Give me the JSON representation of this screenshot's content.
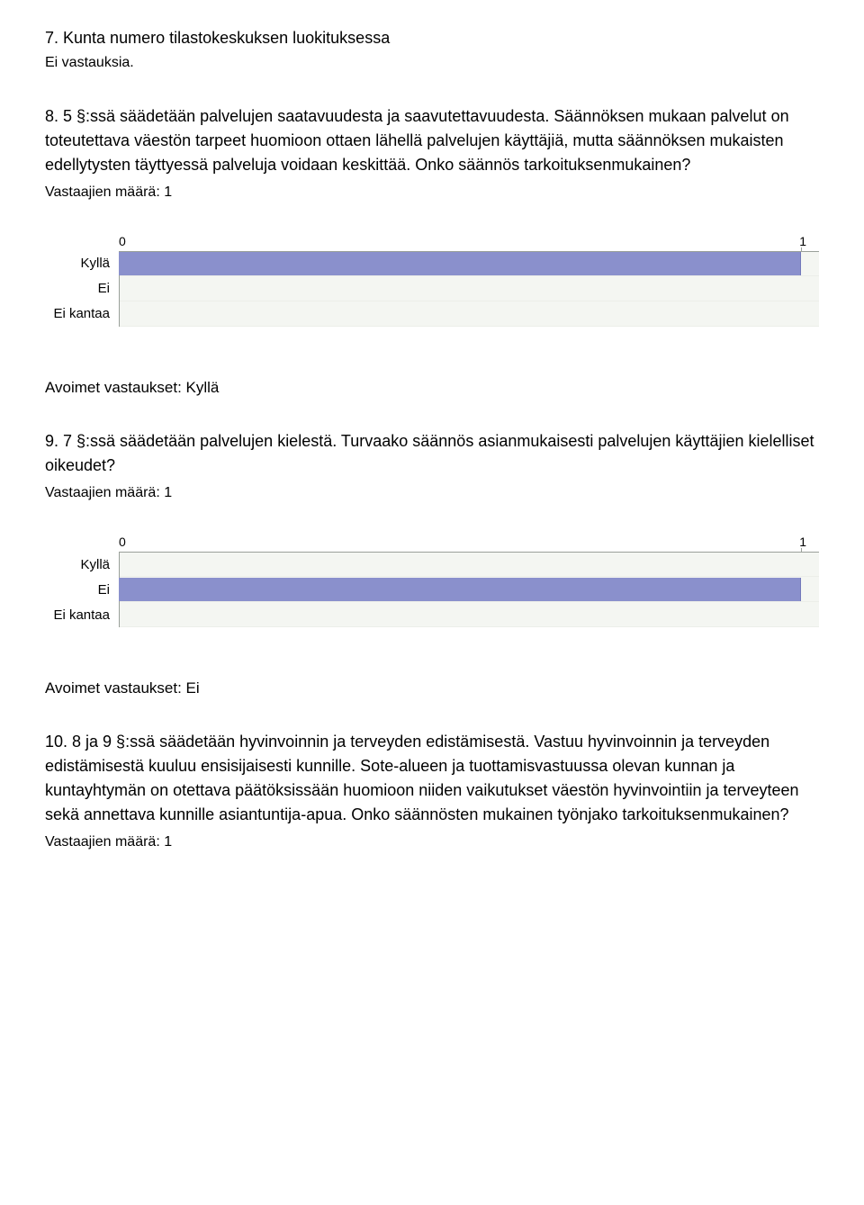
{
  "q7": {
    "heading": "7. Kunta numero tilastokeskuksen luokituksessa",
    "no_responses": "Ei vastauksia."
  },
  "q8": {
    "heading": "8. 5 §:ssä säädetään palvelujen saatavuudesta ja saavutettavuudesta. Säännöksen mukaan palvelut on toteutettava väestön tarpeet huomioon ottaen lähellä palvelujen käyttäjiä, mutta säännöksen mukaisten edellytysten täyttyessä palveluja voidaan keskittää. Onko säännös tarkoituksenmukainen?",
    "resp_count": "Vastaajien määrä: 1",
    "chart": {
      "type": "bar",
      "axis": {
        "min": 0,
        "max": 1,
        "tick0_label": "0",
        "tick1_label": "1"
      },
      "categories": [
        {
          "label": "Kyllä",
          "value": 1
        },
        {
          "label": "Ei",
          "value": 0
        },
        {
          "label": "Ei kantaa",
          "value": 0
        }
      ],
      "bar_color": "#8a90cc",
      "track_color": "#f4f6f2",
      "axis_color": "#9aa09a",
      "fill_fraction_when_max": 0.974
    },
    "open_heading": "Avoimet vastaukset: Kyllä"
  },
  "q9": {
    "heading": "9. 7 §:ssä säädetään palvelujen kielestä. Turvaako säännös asianmukaisesti palvelujen käyttäjien kielelliset oikeudet?",
    "resp_count": "Vastaajien määrä: 1",
    "chart": {
      "type": "bar",
      "axis": {
        "min": 0,
        "max": 1,
        "tick0_label": "0",
        "tick1_label": "1"
      },
      "categories": [
        {
          "label": "Kyllä",
          "value": 0
        },
        {
          "label": "Ei",
          "value": 1
        },
        {
          "label": "Ei kantaa",
          "value": 0
        }
      ],
      "bar_color": "#8a90cc",
      "track_color": "#f4f6f2",
      "axis_color": "#9aa09a",
      "fill_fraction_when_max": 0.974
    },
    "open_heading": "Avoimet vastaukset: Ei"
  },
  "q10": {
    "heading": "10. 8 ja 9 §:ssä säädetään hyvinvoinnin ja terveyden edistämisestä. Vastuu hyvinvoinnin ja terveyden edistämisestä kuuluu ensisijaisesti kunnille. Sote-alueen ja tuottamisvastuussa olevan kunnan ja kuntayhtymän on otettava päätöksissään huomioon niiden vaikutukset väestön hyvinvointiin ja terveyteen sekä annettava kunnille asiantuntija-apua. Onko säännösten mukainen työnjako tarkoituksenmukainen?",
    "resp_count": "Vastaajien määrä: 1"
  }
}
